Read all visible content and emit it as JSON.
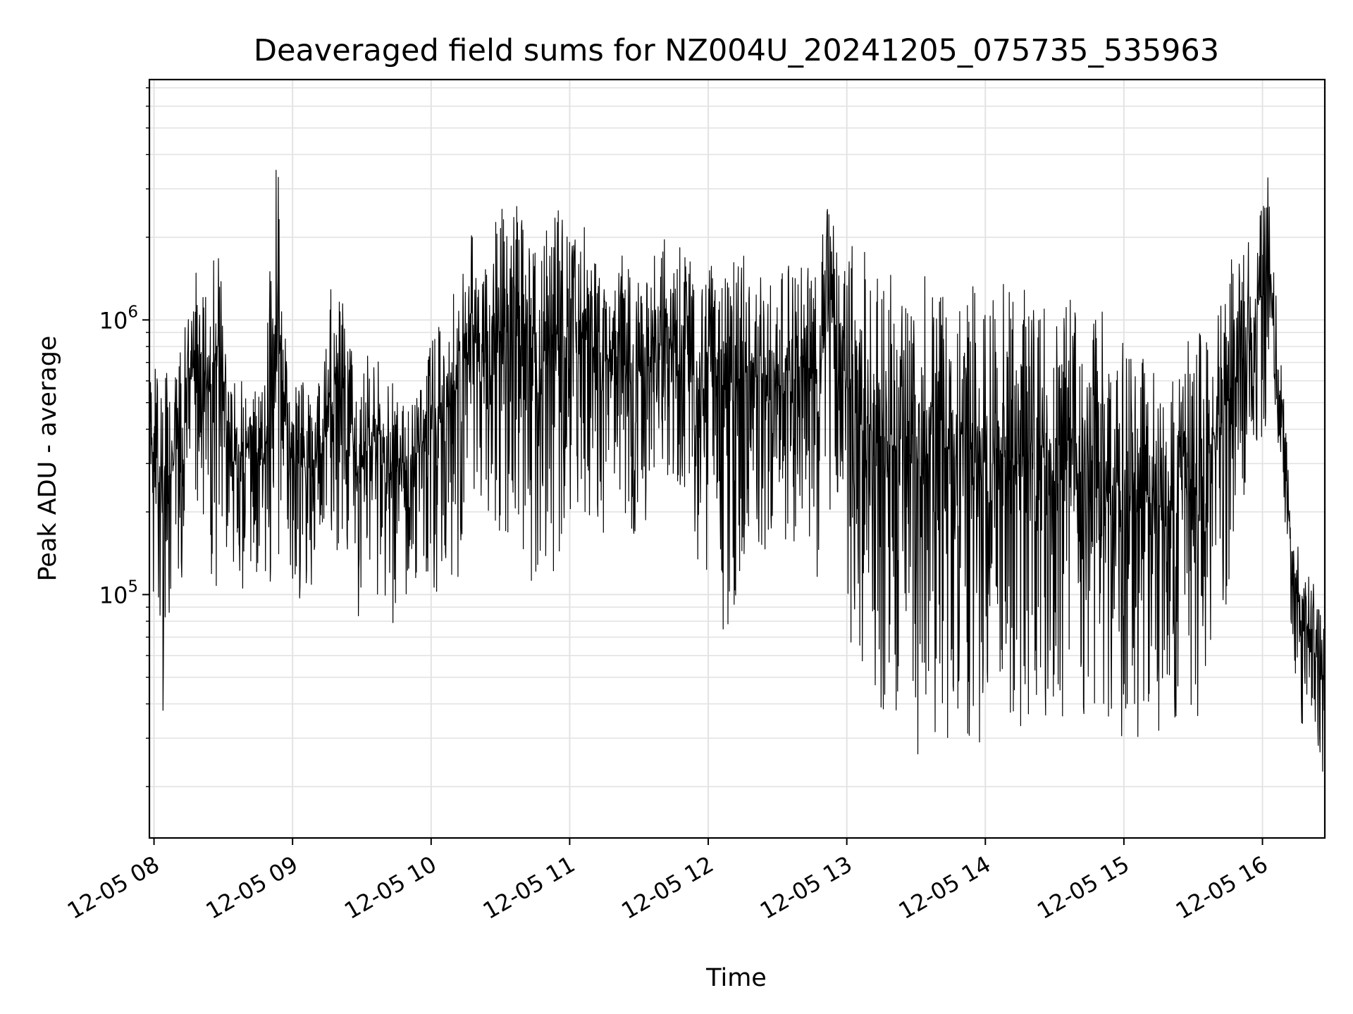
{
  "chart_data": {
    "type": "line",
    "title": "Deaveraged field sums for NZ004U_20241205_075735_535963",
    "xlabel": "Time",
    "ylabel": "Peak ADU - average",
    "x_axis": {
      "type": "time",
      "range": [
        "2024-12-05 07:58",
        "2024-12-05 16:27"
      ],
      "ticks": [
        {
          "value": "2024-12-05 08:00",
          "label": "12-05 08"
        },
        {
          "value": "2024-12-05 09:00",
          "label": "12-05 09"
        },
        {
          "value": "2024-12-05 10:00",
          "label": "12-05 10"
        },
        {
          "value": "2024-12-05 11:00",
          "label": "12-05 11"
        },
        {
          "value": "2024-12-05 12:00",
          "label": "12-05 12"
        },
        {
          "value": "2024-12-05 13:00",
          "label": "12-05 13"
        },
        {
          "value": "2024-12-05 14:00",
          "label": "12-05 14"
        },
        {
          "value": "2024-12-05 15:00",
          "label": "12-05 15"
        },
        {
          "value": "2024-12-05 16:00",
          "label": "12-05 16"
        }
      ]
    },
    "y_axis": {
      "scale": "log",
      "range": [
        13000,
        7500000
      ],
      "ticks": [
        {
          "value": 100000,
          "base": "10",
          "exp": "5"
        },
        {
          "value": 1000000,
          "base": "10",
          "exp": "6"
        }
      ]
    },
    "grid": true,
    "line_color": "#000000",
    "series": [
      {
        "x": [
          "2024-12-05 07:58",
          "2024-12-05 08:03",
          "2024-12-05 08:08",
          "2024-12-05 08:13",
          "2024-12-05 08:18",
          "2024-12-05 08:23",
          "2024-12-05 08:28",
          "2024-12-05 08:33",
          "2024-12-05 08:38",
          "2024-12-05 08:43",
          "2024-12-05 08:48",
          "2024-12-05 08:53",
          "2024-12-05 08:58",
          "2024-12-05 09:03",
          "2024-12-05 09:08",
          "2024-12-05 09:13",
          "2024-12-05 09:18",
          "2024-12-05 09:23",
          "2024-12-05 09:28",
          "2024-12-05 09:33",
          "2024-12-05 09:38",
          "2024-12-05 09:43",
          "2024-12-05 09:48",
          "2024-12-05 09:53",
          "2024-12-05 09:58",
          "2024-12-05 10:03",
          "2024-12-05 10:08",
          "2024-12-05 10:13",
          "2024-12-05 10:18",
          "2024-12-05 10:23",
          "2024-12-05 10:28",
          "2024-12-05 10:33",
          "2024-12-05 10:38",
          "2024-12-05 10:43",
          "2024-12-05 10:48",
          "2024-12-05 10:53",
          "2024-12-05 10:58",
          "2024-12-05 11:03",
          "2024-12-05 11:08",
          "2024-12-05 11:13",
          "2024-12-05 11:18",
          "2024-12-05 11:23",
          "2024-12-05 11:28",
          "2024-12-05 11:33",
          "2024-12-05 11:38",
          "2024-12-05 11:43",
          "2024-12-05 11:48",
          "2024-12-05 11:53",
          "2024-12-05 11:58",
          "2024-12-05 12:03",
          "2024-12-05 12:08",
          "2024-12-05 12:13",
          "2024-12-05 12:18",
          "2024-12-05 12:23",
          "2024-12-05 12:28",
          "2024-12-05 12:33",
          "2024-12-05 12:38",
          "2024-12-05 12:43",
          "2024-12-05 12:48",
          "2024-12-05 12:53",
          "2024-12-05 12:58",
          "2024-12-05 13:03",
          "2024-12-05 13:08",
          "2024-12-05 13:13",
          "2024-12-05 13:18",
          "2024-12-05 13:23",
          "2024-12-05 13:28",
          "2024-12-05 13:33",
          "2024-12-05 13:38",
          "2024-12-05 13:43",
          "2024-12-05 13:48",
          "2024-12-05 13:53",
          "2024-12-05 13:58",
          "2024-12-05 14:03",
          "2024-12-05 14:08",
          "2024-12-05 14:13",
          "2024-12-05 14:18",
          "2024-12-05 14:23",
          "2024-12-05 14:28",
          "2024-12-05 14:33",
          "2024-12-05 14:38",
          "2024-12-05 14:43",
          "2024-12-05 14:48",
          "2024-12-05 14:53",
          "2024-12-05 14:58",
          "2024-12-05 15:03",
          "2024-12-05 15:08",
          "2024-12-05 15:13",
          "2024-12-05 15:18",
          "2024-12-05 15:23",
          "2024-12-05 15:28",
          "2024-12-05 15:33",
          "2024-12-05 15:38",
          "2024-12-05 15:43",
          "2024-12-05 15:48",
          "2024-12-05 15:53",
          "2024-12-05 15:58",
          "2024-12-05 16:03",
          "2024-12-05 16:08",
          "2024-12-05 16:13",
          "2024-12-05 16:18",
          "2024-12-05 16:23",
          "2024-12-05 16:27"
        ],
        "min": [
          190000,
          28000,
          90000,
          120000,
          220000,
          150000,
          80000,
          110000,
          100000,
          130000,
          95000,
          110000,
          120000,
          85000,
          100000,
          130000,
          110000,
          160000,
          75000,
          90000,
          100000,
          75000,
          90000,
          110000,
          110000,
          100000,
          120000,
          100000,
          160000,
          200000,
          180000,
          150000,
          200000,
          100000,
          130000,
          110000,
          130000,
          220000,
          180000,
          150000,
          200000,
          200000,
          160000,
          150000,
          200000,
          180000,
          170000,
          170000,
          100000,
          160000,
          60000,
          90000,
          140000,
          120000,
          160000,
          100000,
          150000,
          180000,
          100000,
          180000,
          200000,
          45000,
          40000,
          40000,
          35000,
          30000,
          25000,
          24000,
          30000,
          28000,
          30000,
          30000,
          28000,
          28000,
          30000,
          30000,
          28000,
          30000,
          30000,
          28000,
          30000,
          28000,
          30000,
          28000,
          30000,
          28000,
          30000,
          30000,
          30000,
          30000,
          30000,
          30000,
          60000,
          70000,
          100000,
          150000,
          250000,
          400000,
          350000,
          80000,
          30000,
          40000,
          14000
        ],
        "max": [
          650000,
          700000,
          600000,
          900000,
          1600000,
          1200000,
          2400000,
          550000,
          650000,
          620000,
          600000,
          5800000,
          550000,
          650000,
          550000,
          700000,
          1800000,
          1400000,
          550000,
          800000,
          700000,
          650000,
          620000,
          600000,
          800000,
          1000000,
          1200000,
          1500000,
          2400000,
          1700000,
          2400000,
          2800000,
          2700000,
          2100000,
          1800000,
          2800000,
          2700000,
          2000000,
          2500000,
          1700000,
          1600000,
          1800000,
          1700000,
          1500000,
          1800000,
          2100000,
          2000000,
          1900000,
          1700000,
          1600000,
          1700000,
          1600000,
          1800000,
          1700000,
          1600000,
          1500000,
          1700000,
          1500000,
          1900000,
          2700000,
          1900000,
          1900000,
          1800000,
          1500000,
          1400000,
          1600000,
          1500000,
          1500000,
          1400000,
          1500000,
          1300000,
          1400000,
          1500000,
          1300000,
          1400000,
          1200000,
          1300000,
          1100000,
          1200000,
          1100000,
          1200000,
          1000000,
          1600000,
          900000,
          800000,
          900000,
          700000,
          800000,
          650000,
          700000,
          900000,
          900000,
          1000000,
          1300000,
          1700000,
          1800000,
          2300000,
          4200000,
          900000,
          250000,
          130000,
          110000,
          90000
        ]
      }
    ]
  }
}
